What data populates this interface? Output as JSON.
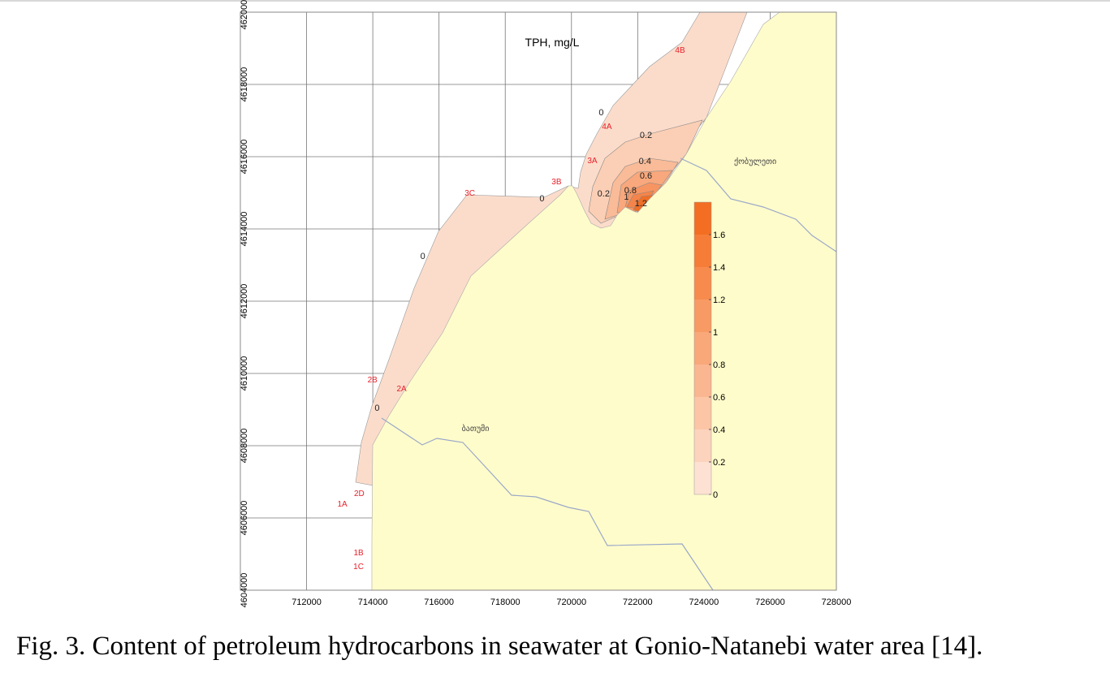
{
  "figure": {
    "title": "TPH, mg/L",
    "xlim": [
      710000,
      728000
    ],
    "ylim": [
      4604000,
      4620000
    ],
    "xticks": [
      712000,
      714000,
      716000,
      718000,
      720000,
      722000,
      724000,
      726000,
      728000
    ],
    "yticks": [
      4604000,
      4606000,
      4608000,
      4610000,
      4612000,
      4614000,
      4616000,
      4618000,
      4620000
    ],
    "grid": true,
    "stations": [
      {
        "label": "4B",
        "x": 723280,
        "y": 4618970
      },
      {
        "label": "4A",
        "x": 721070,
        "y": 4616850
      },
      {
        "label": "3A",
        "x": 720630,
        "y": 4615910
      },
      {
        "label": "3B",
        "x": 719550,
        "y": 4615330
      },
      {
        "label": "3C",
        "x": 716930,
        "y": 4615010
      },
      {
        "label": "2B",
        "x": 713990,
        "y": 4609840
      },
      {
        "label": "2A",
        "x": 714870,
        "y": 4609600
      },
      {
        "label": "2D",
        "x": 713590,
        "y": 4606700
      },
      {
        "label": "1A",
        "x": 713080,
        "y": 4606400
      },
      {
        "label": "1B",
        "x": 713570,
        "y": 4605060
      },
      {
        "label": "1C",
        "x": 713570,
        "y": 4604670
      }
    ],
    "contour_labels": [
      {
        "value": 0,
        "x": 720900,
        "y": 4617240
      },
      {
        "value": 0.2,
        "x": 722250,
        "y": 4616610
      },
      {
        "value": 0.4,
        "x": 722220,
        "y": 4615890
      },
      {
        "value": 0.6,
        "x": 722250,
        "y": 4615480
      },
      {
        "value": 0.8,
        "x": 721780,
        "y": 4615080
      },
      {
        "value": 1,
        "x": 721660,
        "y": 4614900
      },
      {
        "value": 1.2,
        "x": 722100,
        "y": 4614720
      },
      {
        "value": 0.2,
        "x": 720970,
        "y": 4614990
      },
      {
        "value": 0,
        "x": 719110,
        "y": 4614850
      },
      {
        "value": 0,
        "x": 715510,
        "y": 4613260
      },
      {
        "value": 0,
        "x": 714130,
        "y": 4609060
      }
    ],
    "places": [
      {
        "label": "ბათუმი",
        "x": 717100,
        "y": 4608490
      },
      {
        "label": "ქობულეთი",
        "x": 725550,
        "y": 4615890
      }
    ],
    "colorbar": {
      "lim": [
        0,
        1.8
      ],
      "ticks": [
        0,
        0.2,
        0.4,
        0.6,
        0.8,
        1,
        1.2,
        1.4,
        1.6
      ],
      "colors": [
        "#fde2d3",
        "#fcd3bc",
        "#fbc5a6",
        "#fab690",
        "#f9a87a",
        "#f89a64",
        "#f78b4e",
        "#f57d38",
        "#f36e22"
      ]
    }
  },
  "caption": "Fig. 3. Content of petroleum hydrocarbons in seawater at Gonio-Natanebi water area [14]."
}
